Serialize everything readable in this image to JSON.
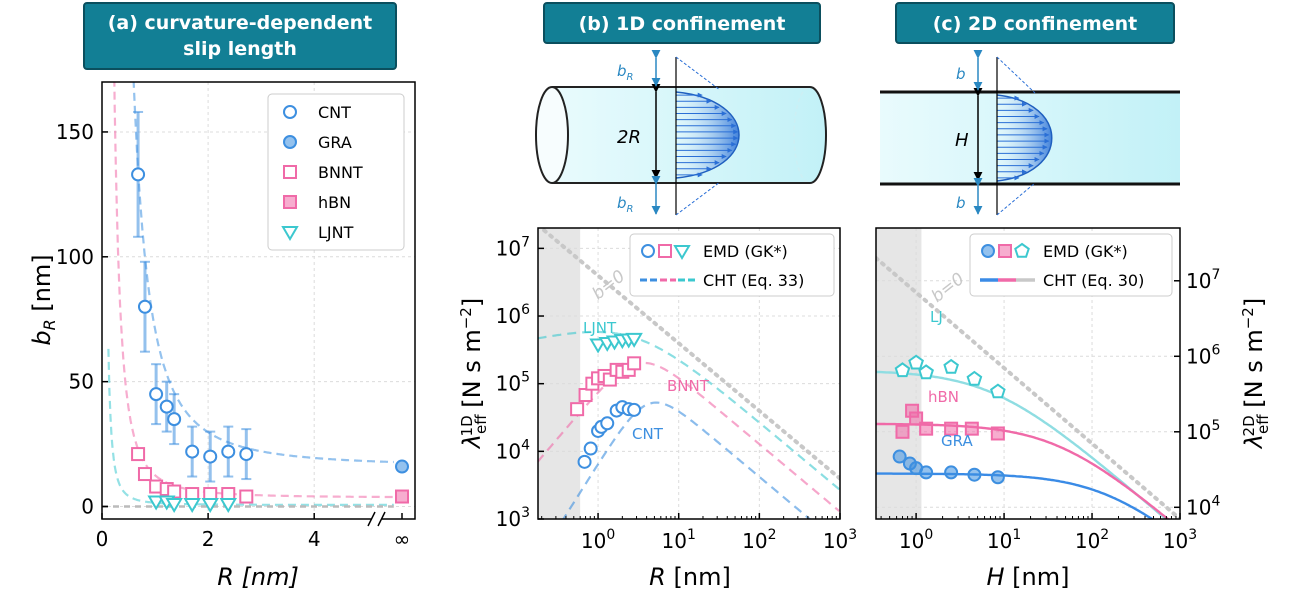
{
  "panel_titles": {
    "a_line1": "(a) curvature-dependent",
    "a_line2": "slip length",
    "b": "(b) 1D confinement",
    "c": "(c) 2D confinement"
  },
  "schematic": {
    "b_label_top": "b",
    "b_label_top_sub": "R",
    "two_r": "2R",
    "b_label_bottom": "b",
    "b_label_bottom_sub": "R",
    "c_b_top": "b",
    "h": "H",
    "c_b_bottom": "b"
  },
  "colors": {
    "cnt": "#3d8fe0",
    "bnnt": "#f06aa8",
    "ljnt": "#3cc8cf",
    "gray_guide": "#c8c8c8",
    "title_bg": "#127f95",
    "shade": "#e6e6e6"
  },
  "chart_data": [
    {
      "panel": "a",
      "type": "scatter",
      "xlabel": "R [nm]",
      "ylabel": "b_R [nm]",
      "xlim": [
        0,
        5.9
      ],
      "ylim": [
        -5,
        170
      ],
      "x_ticks": [
        "0",
        "2",
        "4",
        "∞"
      ],
      "y_ticks": [
        "0",
        "50",
        "100",
        "150"
      ],
      "legend_position": "top-right",
      "grid": true,
      "series": [
        {
          "name": "CNT",
          "marker": "circle-open",
          "x": [
            0.68,
            0.81,
            1.02,
            1.22,
            1.36,
            1.7,
            2.04,
            2.38,
            2.72
          ],
          "y": [
            133,
            80,
            45,
            40,
            35,
            22,
            20,
            22,
            21
          ],
          "err": [
            25,
            18,
            12,
            10,
            10,
            10,
            10,
            10,
            10
          ]
        },
        {
          "name": "GRA",
          "marker": "circle-filled",
          "x": [
            "∞"
          ],
          "y": [
            16
          ]
        },
        {
          "name": "BNNT",
          "marker": "square-open",
          "x": [
            0.68,
            0.81,
            1.02,
            1.22,
            1.36,
            1.7,
            2.04,
            2.38,
            2.72
          ],
          "y": [
            21,
            13,
            8,
            7,
            6,
            5,
            5,
            5,
            4
          ]
        },
        {
          "name": "hBN",
          "marker": "square-filled",
          "x": [
            "∞"
          ],
          "y": [
            4
          ]
        },
        {
          "name": "LJNT",
          "marker": "triangle-down-open",
          "x": [
            1.02,
            1.22,
            1.36,
            1.7,
            2.04,
            2.38
          ],
          "y": [
            2,
            2,
            1,
            1,
            1,
            1
          ]
        }
      ]
    },
    {
      "panel": "b",
      "type": "scatter",
      "xlabel": "R [nm]",
      "ylabel": "λ_eff^1D [N s m^-2]",
      "x_scale": "log",
      "y_scale": "log",
      "xlim": [
        0.18,
        1000
      ],
      "ylim": [
        1000,
        20000000
      ],
      "shaded_region_x": [
        0.18,
        0.6
      ],
      "legend_entries": [
        "EMD (GK*)",
        "CHT (Eq. 33)"
      ],
      "legend_position": "top-right",
      "grid": true,
      "annotations": [
        "b=0",
        "LJNT",
        "BNNT",
        "CNT"
      ],
      "series": [
        {
          "name": "CNT",
          "x": [
            0.68,
            0.81,
            1.0,
            1.1,
            1.3,
            1.7,
            2.0,
            2.4,
            2.8
          ],
          "y": [
            7000,
            11000,
            20000,
            23000,
            26000,
            40000,
            45000,
            42000,
            41000
          ]
        },
        {
          "name": "BNNT",
          "x": [
            0.55,
            0.7,
            0.85,
            1.0,
            1.2,
            1.4,
            1.7,
            2.0,
            2.4,
            2.8
          ],
          "y": [
            42000,
            68000,
            100000,
            120000,
            130000,
            115000,
            160000,
            150000,
            160000,
            200000
          ]
        },
        {
          "name": "LJNT",
          "x": [
            1.0,
            1.3,
            1.6,
            2.0,
            2.4,
            2.8
          ],
          "y": [
            380000,
            400000,
            420000,
            440000,
            450000,
            460000
          ]
        }
      ]
    },
    {
      "panel": "c",
      "type": "scatter",
      "xlabel": "H [nm]",
      "ylabel": "λ_eff^2D [N s m^-2]",
      "x_scale": "log",
      "y_scale": "log",
      "xlim": [
        0.35,
        1000
      ],
      "ylim": [
        7000,
        50000000
      ],
      "shaded_region_x": [
        0.35,
        1.15
      ],
      "legend_entries": [
        "EMD (GK*)",
        "CHT (Eq. 30)"
      ],
      "legend_position": "top-right",
      "grid": true,
      "annotations": [
        "b=0",
        "LJ",
        "hBN",
        "GRA"
      ],
      "series": [
        {
          "name": "LJ",
          "x": [
            0.7,
            1.0,
            1.3,
            2.5,
            4.6,
            8.5
          ],
          "y": [
            650000,
            820000,
            610000,
            720000,
            500000,
            340000
          ]
        },
        {
          "name": "hBN",
          "x": [
            0.7,
            0.9,
            1.0,
            1.3,
            2.5,
            4.3,
            8.5
          ],
          "y": [
            100000,
            190000,
            150000,
            110000,
            110000,
            110000,
            95000
          ]
        },
        {
          "name": "GRA",
          "x": [
            0.65,
            0.85,
            1.0,
            1.3,
            2.5,
            4.6,
            8.5
          ],
          "y": [
            47000,
            38000,
            33000,
            29000,
            29000,
            27000,
            25000
          ]
        }
      ]
    }
  ]
}
